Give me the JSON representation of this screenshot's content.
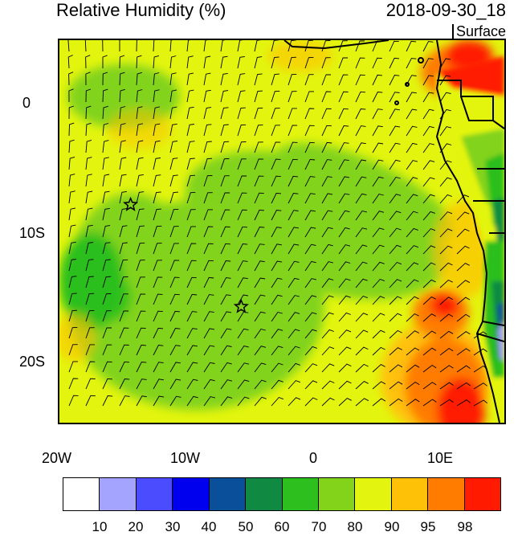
{
  "header": {
    "title": "Relative Humidity (%)",
    "datetime": "2018-09-30_18",
    "level": "Surface"
  },
  "map": {
    "lon_range": [
      -20,
      15
    ],
    "lat_range": [
      -25,
      5
    ],
    "x_ticks": [
      {
        "value": -20,
        "label": "20W"
      },
      {
        "value": -10,
        "label": "10W"
      },
      {
        "value": 0,
        "label": "0"
      },
      {
        "value": 10,
        "label": "10E"
      }
    ],
    "y_ticks": [
      {
        "value": 0,
        "label": "0"
      },
      {
        "value": -10,
        "label": "10S"
      },
      {
        "value": -20,
        "label": "20S"
      }
    ],
    "stations": [
      {
        "name": "station-1",
        "lon": -14.4,
        "lat": -7.9
      },
      {
        "name": "station-2",
        "lon": -5.7,
        "lat": -15.9
      }
    ],
    "wind_barbs": "gridded surface wind barbs over the domain"
  },
  "colorbar": {
    "levels": [
      "10",
      "20",
      "30",
      "40",
      "50",
      "60",
      "70",
      "80",
      "90",
      "95",
      "98"
    ],
    "colors": [
      "#ffffff",
      "#a4a4ff",
      "#4c4cff",
      "#0000ee",
      "#0a4f9a",
      "#108a43",
      "#2cbf1e",
      "#82d31a",
      "#e3f50e",
      "#ffc107",
      "#ff7c00",
      "#ff1a00"
    ]
  },
  "chart_data": {
    "type": "heatmap",
    "title": "Relative Humidity (%)",
    "xlabel": "",
    "ylabel": "",
    "xlim": [
      -20,
      15
    ],
    "ylim": [
      -25,
      5
    ],
    "categories": [
      "10",
      "20",
      "30",
      "40",
      "50",
      "60",
      "70",
      "80",
      "90",
      "95",
      "98"
    ]
  }
}
